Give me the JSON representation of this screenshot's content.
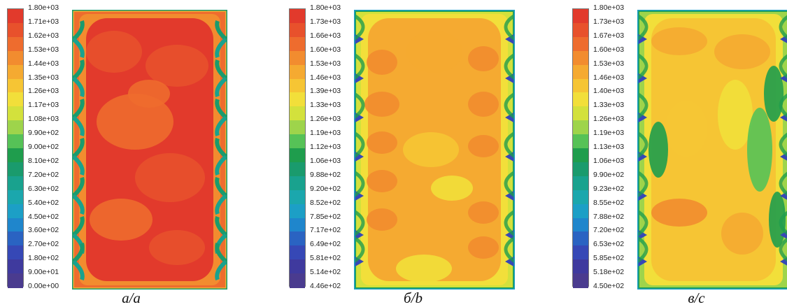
{
  "chart_data": [
    {
      "type": "heatmap",
      "caption": "а/a",
      "colorbar_ticks": [
        "1.80e+03",
        "1.71e+03",
        "1.62e+03",
        "1.53e+03",
        "1.44e+03",
        "1.35e+03",
        "1.26e+03",
        "1.17e+03",
        "1.08e+03",
        "9.90e+02",
        "9.00e+02",
        "8.10e+02",
        "7.20e+02",
        "6.30e+02",
        "5.40e+02",
        "4.50e+02",
        "3.60e+02",
        "2.70e+02",
        "1.80e+02",
        "9.00e+01",
        "0.00e+00"
      ],
      "colorbar_range": [
        0,
        1800
      ],
      "palette": [
        "#e23a2c",
        "#e8512c",
        "#ee6c2e",
        "#f28c2f",
        "#f5aa31",
        "#f6c534",
        "#f2df3a",
        "#d3e13c",
        "#9ed44b",
        "#56c257",
        "#1f9d4d",
        "#1a9b6d",
        "#19a28e",
        "#1ba7ad",
        "#1c9fc6",
        "#1f86cc",
        "#2a63c2",
        "#3648b6",
        "#3f3a9e",
        "#4a3b8f"
      ],
      "dominant_color": "#e23a2c"
    },
    {
      "type": "heatmap",
      "caption": "б/b",
      "colorbar_ticks": [
        "1.80e+03",
        "1.73e+03",
        "1.66e+03",
        "1.60e+03",
        "1.53e+03",
        "1.46e+03",
        "1.39e+03",
        "1.33e+03",
        "1.26e+03",
        "1.19e+03",
        "1.12e+03",
        "1.06e+03",
        "9.88e+02",
        "9.20e+02",
        "8.52e+02",
        "7.85e+02",
        "7.17e+02",
        "6.49e+02",
        "5.81e+02",
        "5.14e+02",
        "4.46e+02"
      ],
      "colorbar_range": [
        446,
        1800
      ],
      "palette": [
        "#e23a2c",
        "#e8512c",
        "#ee6c2e",
        "#f28c2f",
        "#f5aa31",
        "#f6c534",
        "#f2df3a",
        "#d3e13c",
        "#9ed44b",
        "#56c257",
        "#1f9d4d",
        "#1a9b6d",
        "#19a28e",
        "#1ba7ad",
        "#1c9fc6",
        "#1f86cc",
        "#2a63c2",
        "#3648b6",
        "#3f3a9e",
        "#4a3b8f"
      ],
      "dominant_color": "#f5aa31"
    },
    {
      "type": "heatmap",
      "caption": "в/c",
      "colorbar_ticks": [
        "1.80e+03",
        "1.73e+03",
        "1.67e+03",
        "1.60e+03",
        "1.53e+03",
        "1.46e+03",
        "1.40e+03",
        "1.33e+03",
        "1.26e+03",
        "1.19e+03",
        "1.13e+03",
        "1.06e+03",
        "9.90e+02",
        "9.23e+02",
        "8.55e+02",
        "7.88e+02",
        "7.20e+02",
        "6.53e+02",
        "5.85e+02",
        "5.18e+02",
        "4.50e+02"
      ],
      "colorbar_range": [
        450,
        1800
      ],
      "palette": [
        "#e23a2c",
        "#e8512c",
        "#ee6c2e",
        "#f28c2f",
        "#f5aa31",
        "#f6c534",
        "#f2df3a",
        "#d3e13c",
        "#9ed44b",
        "#56c257",
        "#1f9d4d",
        "#1a9b6d",
        "#19a28e",
        "#1ba7ad",
        "#1c9fc6",
        "#1f86cc",
        "#2a63c2",
        "#3648b6",
        "#3f3a9e",
        "#4a3b8f"
      ],
      "dominant_color": "#f6c534"
    }
  ]
}
